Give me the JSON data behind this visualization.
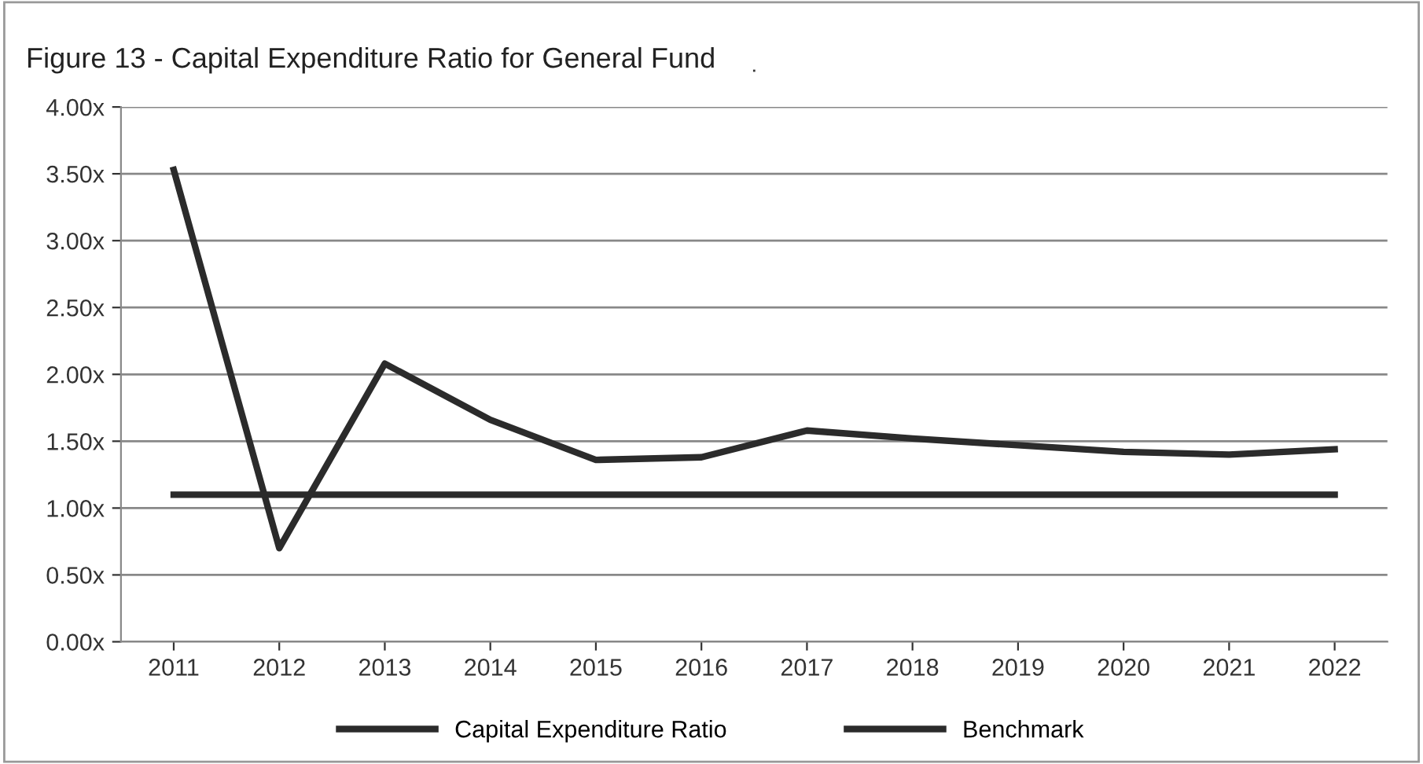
{
  "chart_data": {
    "type": "line",
    "title": "Figure 13 - Capital Expenditure Ratio for General Fund",
    "categories": [
      "2011",
      "2012",
      "2013",
      "2014",
      "2015",
      "2016",
      "2017",
      "2018",
      "2019",
      "2020",
      "2021",
      "2022"
    ],
    "series": [
      {
        "name": "Capital Expenditure Ratio",
        "color": "#2b2b2b",
        "values": [
          3.53,
          0.7,
          2.08,
          1.66,
          1.36,
          1.38,
          1.58,
          1.52,
          1.47,
          1.42,
          1.4,
          1.44
        ]
      },
      {
        "name": "Benchmark",
        "color": "#2b2b2b",
        "values": [
          1.1,
          1.1,
          1.1,
          1.1,
          1.1,
          1.1,
          1.1,
          1.1,
          1.1,
          1.1,
          1.1,
          1.1
        ]
      }
    ],
    "ylim": [
      0,
      4
    ],
    "yticks": [
      {
        "value": 0,
        "label": "0.00x"
      },
      {
        "value": 0.5,
        "label": "0.50x"
      },
      {
        "value": 1,
        "label": "1.00x"
      },
      {
        "value": 1.5,
        "label": "1.50x"
      },
      {
        "value": 2,
        "label": "2.00x"
      },
      {
        "value": 2.5,
        "label": "2.50x"
      },
      {
        "value": 3,
        "label": "3.00x"
      },
      {
        "value": 3.5,
        "label": "3.50x"
      },
      {
        "value": 4,
        "label": "4.00x"
      }
    ],
    "grid": "y",
    "legend": "bottom",
    "marker": "none",
    "line_style": "solid"
  }
}
